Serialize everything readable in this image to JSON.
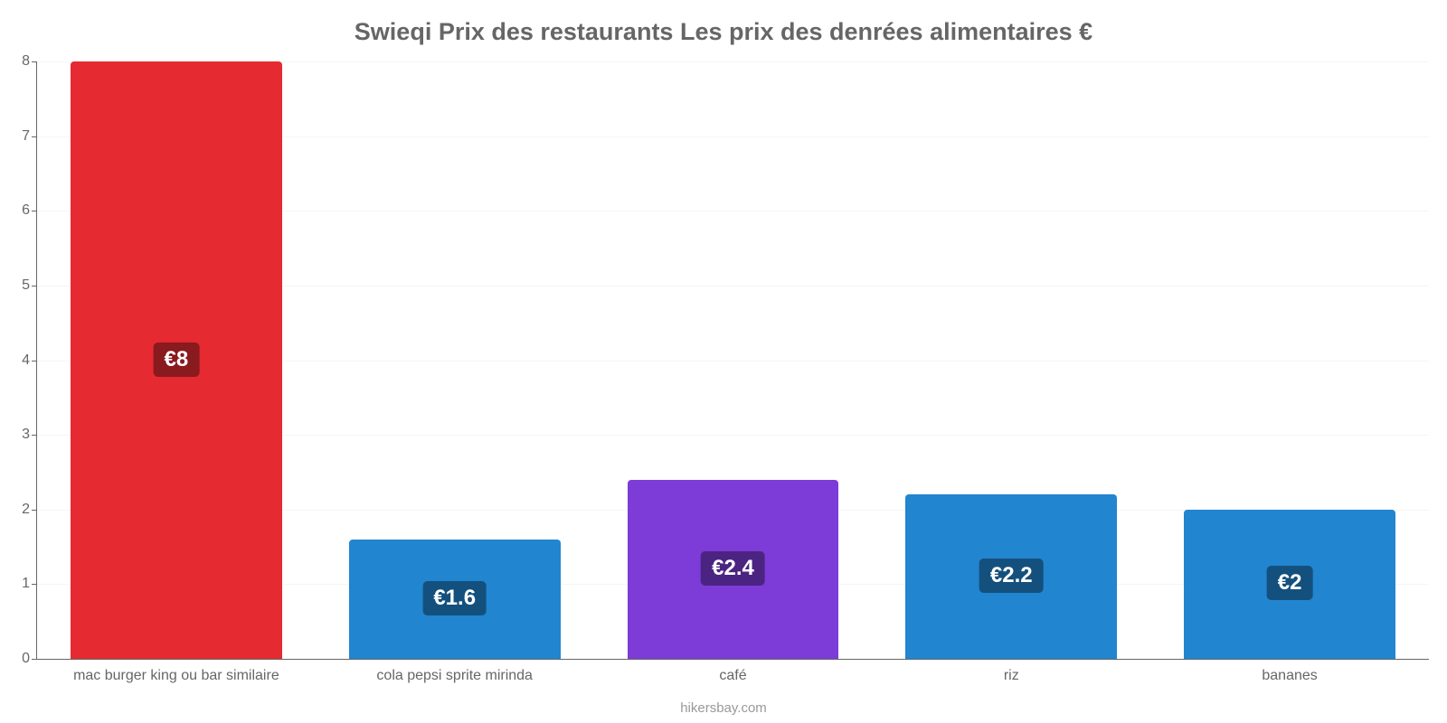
{
  "chart": {
    "type": "bar",
    "title": "Swieqi Prix des restaurants Les prix des denrées alimentaires €",
    "title_color": "#666666",
    "title_fontsize": 27,
    "credits": "hikersbay.com",
    "credits_color": "#999999",
    "background_color": "#ffffff",
    "grid_color": "#f5f5f5",
    "axis_color": "#666666",
    "label_color": "#666666",
    "label_fontsize": 16,
    "value_badge_fontsize": 24,
    "ylim": [
      0,
      8
    ],
    "ytick_step": 1,
    "yticks": [
      {
        "value": 0,
        "label": "0"
      },
      {
        "value": 1,
        "label": "1"
      },
      {
        "value": 2,
        "label": "2"
      },
      {
        "value": 3,
        "label": "3"
      },
      {
        "value": 4,
        "label": "4"
      },
      {
        "value": 5,
        "label": "5"
      },
      {
        "value": 6,
        "label": "6"
      },
      {
        "value": 7,
        "label": "7"
      },
      {
        "value": 8,
        "label": "8"
      }
    ],
    "bar_width_ratio": 0.76,
    "categories": [
      {
        "label": "mac burger king ou bar similaire",
        "value": 8,
        "display_value": "€8",
        "bar_color": "#e52b31",
        "badge_color": "#891a1e"
      },
      {
        "label": "cola pepsi sprite mirinda",
        "value": 1.6,
        "display_value": "€1.6",
        "bar_color": "#2185d0",
        "badge_color": "#14507d"
      },
      {
        "label": "café",
        "value": 2.4,
        "display_value": "€2.4",
        "bar_color": "#7d3cd7",
        "badge_color": "#4b2481"
      },
      {
        "label": "riz",
        "value": 2.2,
        "display_value": "€2.2",
        "bar_color": "#2185d0",
        "badge_color": "#14507d"
      },
      {
        "label": "bananes",
        "value": 2,
        "display_value": "€2",
        "bar_color": "#2185d0",
        "badge_color": "#14507d"
      }
    ]
  }
}
